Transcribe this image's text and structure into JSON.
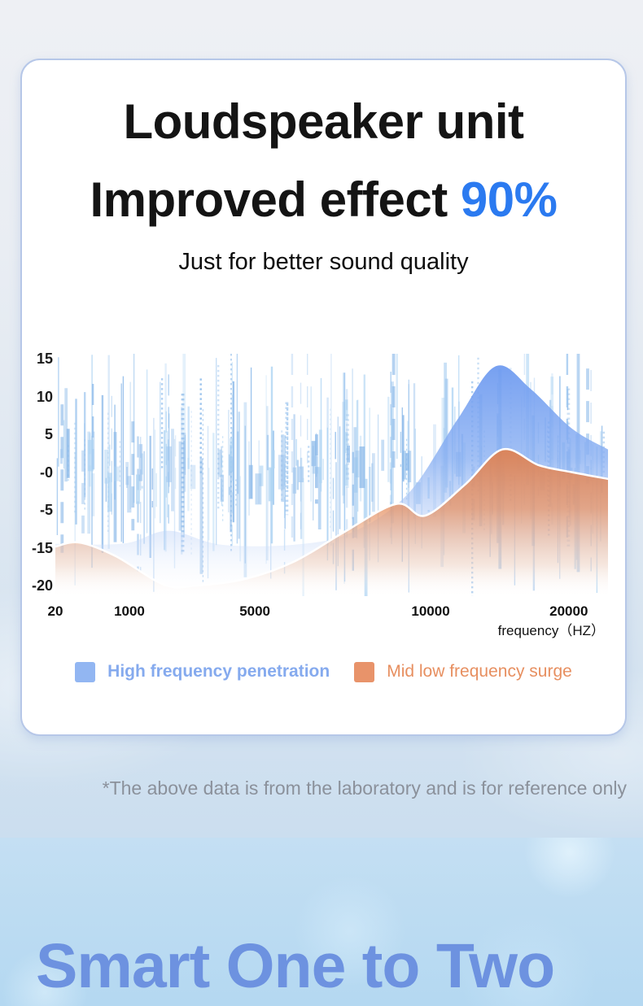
{
  "page": {
    "title_line1": "Loudspeaker unit",
    "title_line2": "Improved effect",
    "title_highlight": "90%",
    "subtitle": "Just for better sound quality",
    "disclaimer": "*The above data is from the laboratory and is for reference only",
    "footer_headline": "Smart One to Two",
    "colors": {
      "highlight_blue": "#2b7af0",
      "headline_blue": "#6d92e0",
      "card_border": "#b6c7e8",
      "disclaimer_gray": "#8b919b"
    }
  },
  "chart_data": {
    "type": "area",
    "title": "",
    "xlabel": "frequency（HZ）",
    "ylim": [
      -20,
      15
    ],
    "grid": false,
    "legend_position": "bottom",
    "x_ticks": [
      {
        "label": "20",
        "pct": 0
      },
      {
        "label": "1000",
        "pct": 13.4
      },
      {
        "label": "5000",
        "pct": 36.1
      },
      {
        "label": "10000",
        "pct": 67.9
      },
      {
        "label": "20000",
        "pct": 92.9
      }
    ],
    "y_ticks": [
      {
        "label": "15",
        "value": 15
      },
      {
        "label": "10",
        "value": 10
      },
      {
        "label": "5",
        "value": 5
      },
      {
        "label": "-0",
        "value": 0
      },
      {
        "label": "-5",
        "value": -5
      },
      {
        "label": "-15",
        "value": -15
      },
      {
        "label": "-20",
        "value": -20
      }
    ],
    "series": [
      {
        "name": "High frequency penetration",
        "color": "#92b6f2",
        "text_color": "#85aaee",
        "points": [
          [
            0,
            -14
          ],
          [
            12.4,
            -13.9
          ],
          [
            20.5,
            -10.5
          ],
          [
            30,
            -14.2
          ],
          [
            43.3,
            -14.2
          ],
          [
            53.6,
            -11
          ],
          [
            63.9,
            -2.8
          ],
          [
            72.8,
            7
          ],
          [
            79.7,
            14
          ],
          [
            86,
            11
          ],
          [
            93.4,
            5.8
          ],
          [
            100,
            3
          ]
        ]
      },
      {
        "name": "Mid low frequency surge",
        "color": "#e8936a",
        "text_color": "#e78f60",
        "top_stroke": "#ffffff",
        "points": [
          [
            0,
            -14.7
          ],
          [
            4.3,
            -13.6
          ],
          [
            10.9,
            -16.1
          ],
          [
            19.7,
            -19.9
          ],
          [
            25.6,
            -20.3
          ],
          [
            34.5,
            -19.1
          ],
          [
            43.3,
            -16.8
          ],
          [
            52.1,
            -11
          ],
          [
            61.7,
            -4.2
          ],
          [
            66.9,
            -6.5
          ],
          [
            74.2,
            -1.6
          ],
          [
            80.9,
            3
          ],
          [
            87.5,
            0.9
          ],
          [
            93.4,
            0
          ],
          [
            100,
            -0.9
          ]
        ]
      }
    ],
    "waveform": {
      "description": "decorative light-blue vertical waveform lines behind the area series",
      "color_palette": [
        "#9cc5ee",
        "#aed4f3",
        "#8bb9e9"
      ],
      "seed": 11,
      "line_count": 240,
      "block_count": 45
    }
  }
}
